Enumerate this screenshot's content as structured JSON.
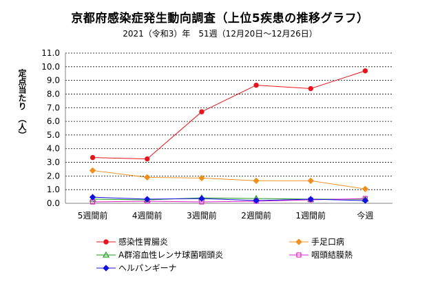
{
  "chart_data": {
    "type": "line",
    "title": "京都府感染症発生動向調査（上位5疾患の推移グラフ）",
    "subtitle": "2021（令和3）年　51週（12月20日～12月26日）",
    "ylabel": "定点当たり　（人）",
    "xlabel": "",
    "categories": [
      "5週間前",
      "4週間前",
      "3週間前",
      "2週間前",
      "1週間前",
      "今週"
    ],
    "ylim": [
      0.0,
      11.0
    ],
    "yticks": [
      "0.0",
      "1.0",
      "2.0",
      "3.0",
      "4.0",
      "5.0",
      "6.0",
      "7.0",
      "8.0",
      "9.0",
      "10.0",
      "11.0"
    ],
    "grid": "horizontal dashed",
    "legend_position": "bottom",
    "series": [
      {
        "name": "感染性胃腸炎",
        "color": "#e8141b",
        "marker": "circle",
        "values": [
          3.35,
          3.25,
          6.7,
          8.65,
          8.4,
          9.7
        ]
      },
      {
        "name": "手足口病",
        "color": "#f0901e",
        "marker": "diamond",
        "values": [
          2.4,
          1.9,
          1.85,
          1.65,
          1.65,
          1.05
        ]
      },
      {
        "name": "A群溶血性レンサ球菌咽頭炎",
        "color": "#1a9a1a",
        "marker": "triangle",
        "values": [
          0.3,
          0.25,
          0.4,
          0.35,
          0.3,
          0.3
        ]
      },
      {
        "name": "咽頭結膜熱",
        "color": "#e020c8",
        "marker": "square",
        "values": [
          0.1,
          0.15,
          0.1,
          0.15,
          0.25,
          0.35
        ]
      },
      {
        "name": "ヘルパンギーナ",
        "color": "#1010e0",
        "marker": "diamond",
        "values": [
          0.45,
          0.3,
          0.35,
          0.2,
          0.3,
          0.2
        ]
      }
    ]
  }
}
